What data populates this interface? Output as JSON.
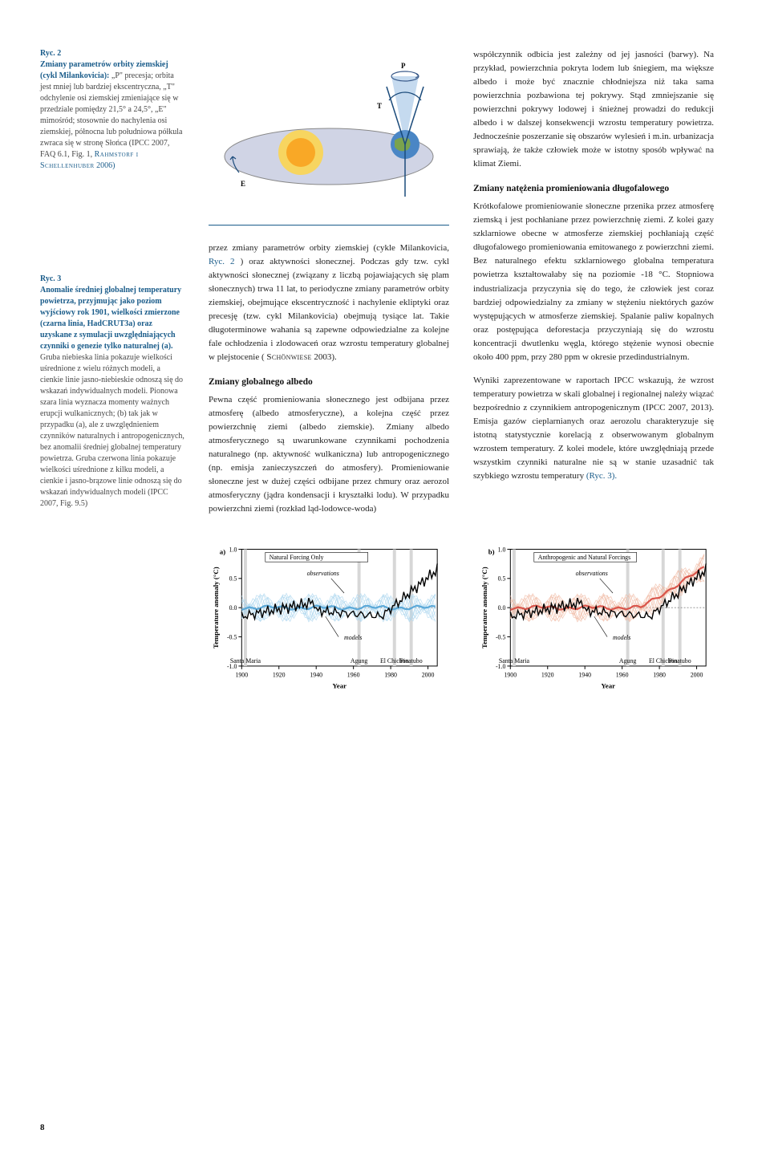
{
  "ryc2_caption": {
    "head": "Ryc. 2",
    "title": "Zmiany parametrów orbity ziemskiej (cykl Milankovicia):",
    "body": " „P\" precesja; orbita jest mniej lub bardziej ekscentryczna, „T\" odchylenie osi ziemskiej zmieniające się w przedziale pomiędzy 21,5° a 24,5°, „E\" mimośród; stosownie do nachylenia osi ziemskiej, północna lub południowa półkula zwraca się w stronę Słońca (IPCC 2007, FAQ 6.1, Fig. 1, ",
    "refs": "Rahmstorf i Schellenhuber",
    "tail": " 2006)"
  },
  "ryc3_caption": {
    "head": "Ryc. 3",
    "title": "Anomalie średniej globalnej temperatury powietrza, przyjmując jako poziom wyjściowy rok 1901, wielkości zmierzone (czarna linia, HadCRUT3a) oraz uzyskane z symulacji uwzględniających czynniki o genezie tylko naturalnej (a).",
    "body": " Gruba niebieska linia pokazuje wielkości uśrednione z wielu różnych modeli, a cienkie linie jasno-niebieskie odnoszą się do wskazań indywidualnych modeli. Pionowa szara linia wyznacza momenty ważnych erupcji wulkanicznych; (b) tak jak w przypadku (a), ale z uwzględnieniem czynników naturalnych i antropogenicznych, bez anomalii średniej globalnej temperatury powietrza. Gruba czerwona linia pokazuje wielkości uśrednione z kilku modeli, a cienkie i jasno-brązowe linie odnoszą się do wskazań indywidualnych modeli (IPCC 2007, Fig. 9.5)"
  },
  "mid_para1": "przez zmiany parametrów orbity ziemskiej (cykle Milankovicia, ",
  "mid_para1_ref": "Ryc. 2",
  "mid_para1b": ") oraz aktywności słonecznej. Podczas gdy tzw. cykl aktywności słonecznej (związany z liczbą pojawiających się plam słonecznych) trwa 11 lat, to periodyczne zmiany parametrów orbity ziemskiej, obejmujące ekscentryczność i nachylenie ekliptyki oraz precesję (tzw. cykl Milankovicia) obejmują tysiące lat. Takie długoterminowe wahania są zapewne odpowiedzialne za kolejne fale ochłodzenia i zlodowaceń oraz wzrostu temperatury globalnej w plejstocenie (",
  "mid_para1_sc": "Schönwiese",
  "mid_para1c": " 2003).",
  "mid_h1": "Zmiany globalnego albedo",
  "mid_para2": "Pewna część promieniowania słonecznego jest odbijana przez atmosferę (albedo atmosferyczne), a kolejna część przez powierzchnię ziemi (albedo ziemskie). Zmiany albedo atmosferycznego są uwarunkowane czynnikami pochodzenia naturalnego (np. aktywność wulkaniczna) lub antropogenicznego (np. emisja zanieczyszczeń do atmosfery). Promieniowanie słoneczne jest w dużej części odbijane przez chmury oraz aerozol atmosferyczny (jądra kondensacji i kryształki lodu). W przypadku powierzchni ziemi (rozkład ląd-lodowce-woda)",
  "right_para1": "współczynnik odbicia jest zależny od jej jasności (barwy). Na przykład, powierzchnia pokryta lodem lub śniegiem, ma większe albedo i może być znacznie chłodniejsza niż taka sama powierzchnia pozbawiona tej pokrywy. Stąd zmniejszanie się powierzchni pokrywy lodowej i śnieżnej prowadzi do redukcji albedo i w dalszej konsekwencji wzrostu temperatury powietrza. Jednocześnie poszerzanie się obszarów wylesień i m.in. urbanizacja sprawiają, że także człowiek może w istotny sposób wpływać na klimat Ziemi.",
  "right_h1": "Zmiany natężenia promieniowania długofalowego",
  "right_para2": "Krótkofalowe promieniowanie słoneczne przenika przez atmosferę ziemską i jest pochłaniane przez powierzchnię ziemi. Z kolei gazy szklarniowe obecne w atmosferze ziemskiej pochłaniają część długofalowego promieniowania emitowanego z powierzchni ziemi. Bez naturalnego efektu szklarniowego globalna temperatura powietrza kształtowałaby się na poziomie -18 °C. Stopniowa industrializacja przyczynia się do tego, że człowiek jest coraz bardziej odpowiedzialny za zmiany w stężeniu niektórych gazów występujących w atmosferze ziemskiej. Spalanie paliw kopalnych oraz postępująca deforestacja przyczyniają się do wzrostu koncentracji dwutlenku węgla, którego stężenie wynosi obecnie około 400 ppm, przy 280 ppm w okresie przedindustrialnym.",
  "right_para3a": "Wyniki zaprezentowane w raportach IPCC wskazują, że wzrost temperatury powietrza w skali globalnej i regionalnej należy wiązać bezpośrednio z czynnikiem antropogenicznym (IPCC 2007, 2013). Emisja gazów cieplarnianych oraz aerozolu charakteryzuje się istotną statystycznie korelacją z obserwowanym globalnym wzrostem temperatury. Z kolei modele, które uwzględniają przede wszystkim czynniki naturalne nie są w stanie uzasadnić tak szybkiego wzrostu temperatury ",
  "right_para3_ref": "(Ryc. 3).",
  "orbit_fig": {
    "labels": {
      "T": "T",
      "P": "P",
      "E": "E"
    },
    "colors": {
      "space": "#2a3b5c",
      "orbit": "#d0d4e0",
      "sun_outer": "#f7d560",
      "sun_inner": "#f9a826",
      "earth_water": "#4a86c5",
      "earth_land": "#7aa34d",
      "axis": "#3a5a8a"
    }
  },
  "charts": {
    "a": {
      "label": "a)",
      "title": "Natural Forcing Only",
      "obs_label": "observations",
      "models_label": "models",
      "xlabel": "Year",
      "ylabel": "Temperature anomaly (°C)",
      "xticks": [
        1900,
        1920,
        1940,
        1960,
        1980,
        2000
      ],
      "yticks": [
        1.0,
        0.5,
        0.0,
        -0.5,
        -1.0
      ],
      "volcanoes": [
        {
          "x": 1902,
          "label": "Santa Maria"
        },
        {
          "x": 1963,
          "label": "Agung"
        },
        {
          "x": 1982,
          "label": "El Chichon"
        },
        {
          "x": 1991,
          "label": "Pinatubo"
        }
      ],
      "model_color": "#5aa8d8",
      "model_light": "#a8d4ee",
      "obs_color": "#000000"
    },
    "b": {
      "label": "b)",
      "title": "Anthropogenic and Natural Forcings",
      "obs_label": "observations",
      "models_label": "models",
      "xlabel": "Year",
      "ylabel": "Temperature anomaly (°C)",
      "xticks": [
        1900,
        1920,
        1940,
        1960,
        1980,
        2000
      ],
      "yticks": [
        1.0,
        0.5,
        0.0,
        -0.5,
        -1.0
      ],
      "volcanoes": [
        {
          "x": 1902,
          "label": "Santa Maria"
        },
        {
          "x": 1963,
          "label": "Agung"
        },
        {
          "x": 1982,
          "label": "El Chichon"
        },
        {
          "x": 1991,
          "label": "Pinatubo"
        }
      ],
      "model_color": "#d9544a",
      "model_light": "#f0b6a0",
      "obs_color": "#000000"
    }
  },
  "page_number": "8"
}
